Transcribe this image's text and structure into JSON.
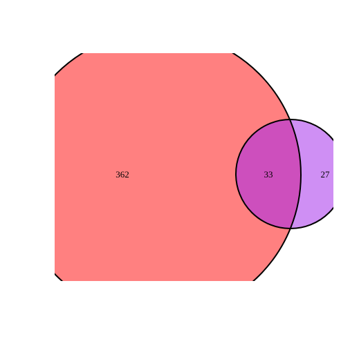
{
  "venn": {
    "colors": {
      "set_a_fill": "#ff8080",
      "set_b_fill": "#cf8ff4",
      "overlap_fill": "#cd4fbd",
      "outline": "#000000"
    },
    "regions": {
      "only_a": "362",
      "overlap": "33",
      "only_b": "27"
    }
  }
}
